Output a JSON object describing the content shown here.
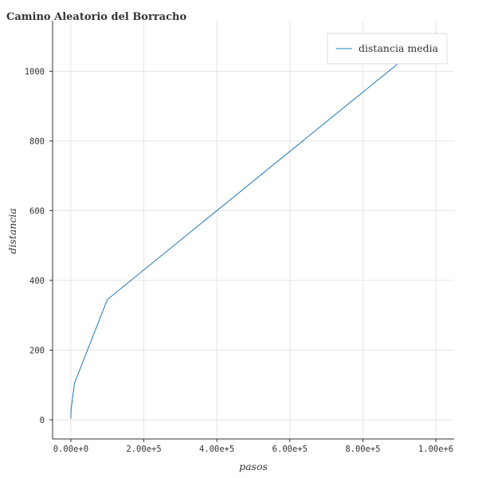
{
  "chart_data": {
    "type": "line",
    "title": "Camino Aleatorio del Borracho",
    "xlabel": "pasos",
    "ylabel": "distancia",
    "xlim": [
      -50000,
      1050000
    ],
    "ylim": [
      -55,
      1145
    ],
    "xticks": [
      0,
      200000,
      400000,
      600000,
      800000,
      1000000
    ],
    "xtick_labels": [
      "0.00e+0",
      "2.00e+5",
      "4.00e+5",
      "6.00e+5",
      "8.00e+5",
      "1.00e+6"
    ],
    "yticks": [
      0,
      200,
      400,
      600,
      800,
      1000
    ],
    "ytick_labels": [
      "0",
      "200",
      "400",
      "600",
      "800",
      "1000"
    ],
    "grid": true,
    "legend_position": "top-right",
    "series": [
      {
        "name": "distancia media",
        "color": "#1f77b4",
        "x": [
          10,
          100,
          1000,
          10000,
          100000,
          1000000
        ],
        "y": [
          3,
          10,
          32,
          105,
          345,
          1110
        ]
      }
    ]
  }
}
